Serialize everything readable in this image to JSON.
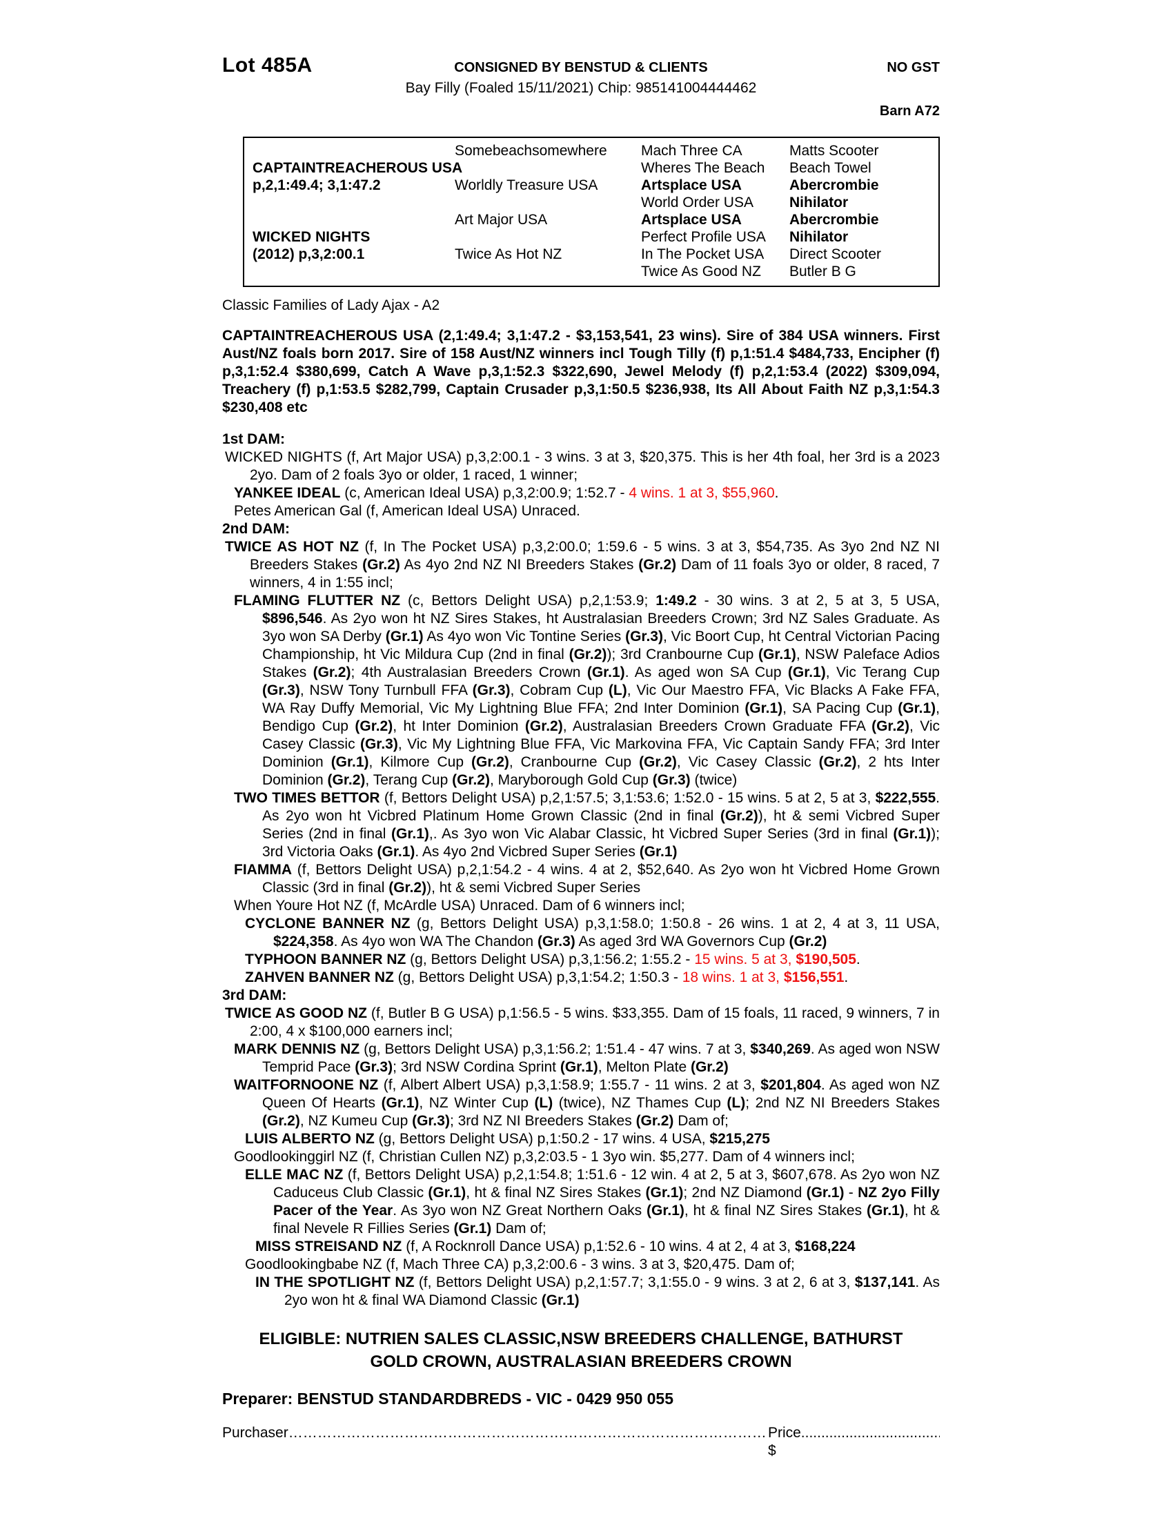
{
  "header": {
    "lot": "Lot 485A",
    "consignor": "CONSIGNED BY BENSTUD & CLIENTS",
    "description": "Bay Filly (Foaled 15/11/2021) Chip: 985141004444462",
    "gst": "NO GST",
    "barn": "Barn A72"
  },
  "pedigree_table": {
    "rows": [
      [
        {
          "t": ""
        },
        {
          "t": "Somebeachsomewhere"
        },
        {
          "t": "Mach Three CA"
        },
        {
          "t": "Matts Scooter"
        }
      ],
      [
        {
          "t": "CAPTAINTREACHEROUS USA",
          "b": true
        },
        {
          "t": ""
        },
        {
          "t": "Wheres The Beach"
        },
        {
          "t": "Beach Towel"
        }
      ],
      [
        {
          "t": "p,2,1:49.4; 3,1:47.2",
          "b": true
        },
        {
          "t": "Worldly Treasure USA"
        },
        {
          "t": "Artsplace USA",
          "b": true
        },
        {
          "t": "Abercrombie",
          "b": true
        }
      ],
      [
        {
          "t": ""
        },
        {
          "t": ""
        },
        {
          "t": "World Order USA"
        },
        {
          "t": "Nihilator",
          "b": true
        }
      ],
      [
        {
          "t": ""
        },
        {
          "t": "Art Major USA"
        },
        {
          "t": "Artsplace USA",
          "b": true
        },
        {
          "t": "Abercrombie",
          "b": true
        }
      ],
      [
        {
          "t": "WICKED NIGHTS",
          "b": true
        },
        {
          "t": ""
        },
        {
          "t": "Perfect Profile USA"
        },
        {
          "t": "Nihilator",
          "b": true
        }
      ],
      [
        {
          "t": "(2012) p,3,2:00.1",
          "b": true
        },
        {
          "t": "Twice As Hot NZ"
        },
        {
          "t": "In The Pocket USA"
        },
        {
          "t": "Direct Scooter"
        }
      ],
      [
        {
          "t": ""
        },
        {
          "t": ""
        },
        {
          "t": "Twice As Good NZ"
        },
        {
          "t": "Butler B G"
        }
      ]
    ]
  },
  "family_line": "Classic Families of Lady Ajax - A2",
  "sire_paragraph": "CAPTAINTREACHEROUS USA (2,1:49.4; 3,1:47.2 - $3,153,541, 23 wins). Sire of 384 USA winners. First Aust/NZ foals born 2017. Sire of 158 Aust/NZ winners incl Tough Tilly (f) p,1:51.4 $484,733, Encipher (f) p,3,1:52.4 $380,699, Catch A Wave p,3,1:52.3 $322,690, Jewel Melody (f) p,2,1:53.4 (2022) $309,094, Treachery (f) p,1:53.5 $282,799, Captain Crusader p,3,1:50.5 $236,938, Its All About Faith NZ p,3,1:54.3 $230,408 etc",
  "sections": [
    {
      "heading": "1st DAM:",
      "paragraphs": [
        {
          "level": 1,
          "runs": [
            {
              "t": "WICKED NIGHTS (f, Art Major USA) p,3,2:00.1 - 3 wins. 3 at 3, $20,375. This is her 4th foal, her 3rd is a 2023 2yo. Dam of 2 foals 3yo or older, 1 raced, 1 winner;"
            }
          ]
        },
        {
          "level": 2,
          "runs": [
            {
              "t": "YANKEE IDEAL",
              "b": true
            },
            {
              "t": " (c, American Ideal USA) p,3,2:00.9; 1:52.7 - "
            },
            {
              "t": "4 wins. 1 at 3, $55,960",
              "r": true
            },
            {
              "t": "."
            }
          ]
        },
        {
          "level": 2,
          "runs": [
            {
              "t": "Petes American Gal (f, American Ideal USA) Unraced."
            }
          ]
        }
      ]
    },
    {
      "heading": "2nd DAM:",
      "paragraphs": [
        {
          "level": 1,
          "runs": [
            {
              "t": "TWICE AS HOT NZ",
              "b": true
            },
            {
              "t": " (f, In The Pocket USA) p,3,2:00.0; 1:59.6 - 5 wins. 3 at 3, $54,735. As 3yo 2nd NZ NI Breeders Stakes "
            },
            {
              "t": "(Gr.2)",
              "b": true
            },
            {
              "t": " As 4yo 2nd NZ NI Breeders Stakes "
            },
            {
              "t": "(Gr.2)",
              "b": true
            },
            {
              "t": " Dam of 11 foals 3yo or older, 8 raced, 7 winners, 4 in 1:55 incl;"
            }
          ]
        },
        {
          "level": 2,
          "runs": [
            {
              "t": "FLAMING FLUTTER NZ",
              "b": true
            },
            {
              "t": " (c, Bettors Delight USA) p,2,1:53.9; "
            },
            {
              "t": "1:49.2",
              "b": true
            },
            {
              "t": " - 30 wins. 3 at 2, 5 at 3, 5 USA, "
            },
            {
              "t": "$896,546",
              "b": true
            },
            {
              "t": ". As 2yo won ht NZ Sires Stakes, ht Australasian Breeders Crown; 3rd NZ Sales Graduate. As 3yo won SA Derby "
            },
            {
              "t": "(Gr.1)",
              "b": true
            },
            {
              "t": " As 4yo won Vic Tontine Series "
            },
            {
              "t": "(Gr.3)",
              "b": true
            },
            {
              "t": ", Vic Boort Cup, ht Central Victorian Pacing Championship, ht Vic Mildura Cup (2nd in final "
            },
            {
              "t": "(Gr.2)",
              "b": true
            },
            {
              "t": "); 3rd Cranbourne Cup "
            },
            {
              "t": "(Gr.1)",
              "b": true
            },
            {
              "t": ", NSW Paleface Adios Stakes "
            },
            {
              "t": "(Gr.2)",
              "b": true
            },
            {
              "t": "; 4th Australasian Breeders Crown "
            },
            {
              "t": "(Gr.1)",
              "b": true
            },
            {
              "t": ". As aged won SA Cup "
            },
            {
              "t": "(Gr.1)",
              "b": true
            },
            {
              "t": ", Vic Terang Cup "
            },
            {
              "t": "(Gr.3)",
              "b": true
            },
            {
              "t": ", NSW Tony Turnbull FFA "
            },
            {
              "t": "(Gr.3)",
              "b": true
            },
            {
              "t": ", Cobram Cup "
            },
            {
              "t": "(L)",
              "b": true
            },
            {
              "t": ", Vic Our Maestro FFA, Vic Blacks A Fake FFA, WA Ray Duffy Memorial, Vic My Lightning Blue FFA; 2nd Inter Dominion "
            },
            {
              "t": "(Gr.1)",
              "b": true
            },
            {
              "t": ", SA Pacing Cup "
            },
            {
              "t": "(Gr.1)",
              "b": true
            },
            {
              "t": ", Bendigo Cup "
            },
            {
              "t": "(Gr.2)",
              "b": true
            },
            {
              "t": ", ht Inter Dominion "
            },
            {
              "t": "(Gr.2)",
              "b": true
            },
            {
              "t": ", Australasian Breeders Crown Graduate FFA "
            },
            {
              "t": "(Gr.2)",
              "b": true
            },
            {
              "t": ", Vic Casey Classic "
            },
            {
              "t": "(Gr.3)",
              "b": true
            },
            {
              "t": ", Vic My Lightning Blue FFA, Vic Markovina FFA, Vic Captain Sandy FFA; 3rd Inter Dominion "
            },
            {
              "t": "(Gr.1)",
              "b": true
            },
            {
              "t": ", Kilmore Cup "
            },
            {
              "t": "(Gr.2)",
              "b": true
            },
            {
              "t": ", Cranbourne Cup "
            },
            {
              "t": "(Gr.2)",
              "b": true
            },
            {
              "t": ", Vic Casey Classic "
            },
            {
              "t": "(Gr.2)",
              "b": true
            },
            {
              "t": ", 2 hts Inter Dominion "
            },
            {
              "t": "(Gr.2)",
              "b": true
            },
            {
              "t": ", Terang Cup "
            },
            {
              "t": "(Gr.2)",
              "b": true
            },
            {
              "t": ", Maryborough Gold Cup "
            },
            {
              "t": "(Gr.3)",
              "b": true
            },
            {
              "t": " (twice)"
            }
          ]
        },
        {
          "level": 2,
          "runs": [
            {
              "t": "TWO TIMES BETTOR",
              "b": true
            },
            {
              "t": " (f, Bettors Delight USA) p,2,1:57.5; 3,1:53.6; 1:52.0 - 15 wins. 5 at 2, 5 at 3, "
            },
            {
              "t": "$222,555",
              "b": true
            },
            {
              "t": ". As 2yo won ht Vicbred Platinum Home Grown Classic (2nd in final "
            },
            {
              "t": "(Gr.2)",
              "b": true
            },
            {
              "t": "), ht & semi Vicbred Super Series (2nd in final "
            },
            {
              "t": "(Gr.1)",
              "b": true
            },
            {
              "t": ",. As 3yo won Vic Alabar Classic, ht Vicbred Super Series (3rd in final "
            },
            {
              "t": "(Gr.1)",
              "b": true
            },
            {
              "t": "); 3rd Victoria Oaks "
            },
            {
              "t": "(Gr.1)",
              "b": true
            },
            {
              "t": ". As 4yo 2nd Vicbred Super Series "
            },
            {
              "t": "(Gr.1)",
              "b": true
            }
          ]
        },
        {
          "level": 2,
          "runs": [
            {
              "t": "FIAMMA",
              "b": true
            },
            {
              "t": " (f, Bettors Delight USA) p,2,1:54.2 - 4 wins. 4 at 2, $52,640. As 2yo won ht Vicbred Home Grown Classic (3rd in final "
            },
            {
              "t": "(Gr.2)",
              "b": true
            },
            {
              "t": "), ht & semi Vicbred Super Series"
            }
          ]
        },
        {
          "level": 2,
          "runs": [
            {
              "t": "When Youre Hot NZ (f, McArdle USA) Unraced. Dam of 6 winners incl;"
            }
          ]
        },
        {
          "level": 3,
          "runs": [
            {
              "t": "CYCLONE BANNER NZ",
              "b": true
            },
            {
              "t": " (g, Bettors Delight USA) p,3,1:58.0; 1:50.8 - 26 wins. 1 at 2, 4 at 3, 11 USA, "
            },
            {
              "t": "$224,358",
              "b": true
            },
            {
              "t": ". As 4yo won WA The Chandon "
            },
            {
              "t": "(Gr.3)",
              "b": true
            },
            {
              "t": " As aged 3rd WA Governors Cup "
            },
            {
              "t": "(Gr.2)",
              "b": true
            }
          ]
        },
        {
          "level": 3,
          "runs": [
            {
              "t": "TYPHOON BANNER NZ",
              "b": true
            },
            {
              "t": " (g, Bettors Delight USA) p,3,1:56.2; 1:55.2 - "
            },
            {
              "t": "15 wins. 5 at 3, ",
              "r": true
            },
            {
              "t": "$190,505",
              "b": true,
              "r": true
            },
            {
              "t": "."
            }
          ]
        },
        {
          "level": 3,
          "runs": [
            {
              "t": "ZAHVEN BANNER NZ",
              "b": true
            },
            {
              "t": " (g, Bettors Delight USA) p,3,1:54.2; 1:50.3 - "
            },
            {
              "t": "18 wins. 1 at 3, ",
              "r": true
            },
            {
              "t": "$156,551",
              "b": true,
              "r": true
            },
            {
              "t": "."
            }
          ]
        }
      ]
    },
    {
      "heading": "3rd DAM:",
      "paragraphs": [
        {
          "level": 1,
          "runs": [
            {
              "t": "TWICE AS GOOD NZ",
              "b": true
            },
            {
              "t": " (f, Butler B G USA) p,1:56.5 - 5 wins. $33,355. Dam of 15 foals, 11 raced, 9 winners, 7 in 2:00, 4 x $100,000 earners incl;"
            }
          ]
        },
        {
          "level": 2,
          "runs": [
            {
              "t": "MARK DENNIS NZ",
              "b": true
            },
            {
              "t": " (g, Bettors Delight USA) p,3,1:56.2; 1:51.4 - 47 wins. 7 at 3, "
            },
            {
              "t": "$340,269",
              "b": true
            },
            {
              "t": ". As aged won NSW Temprid Pace "
            },
            {
              "t": "(Gr.3)",
              "b": true
            },
            {
              "t": "; 3rd NSW Cordina Sprint "
            },
            {
              "t": "(Gr.1)",
              "b": true
            },
            {
              "t": ", Melton Plate "
            },
            {
              "t": "(Gr.2)",
              "b": true
            }
          ]
        },
        {
          "level": 2,
          "runs": [
            {
              "t": "WAITFORNOONE NZ",
              "b": true
            },
            {
              "t": " (f, Albert Albert USA) p,3,1:58.9; 1:55.7 - 11 wins. 2 at 3, "
            },
            {
              "t": "$201,804",
              "b": true
            },
            {
              "t": ". As aged won NZ Queen Of Hearts "
            },
            {
              "t": "(Gr.1)",
              "b": true
            },
            {
              "t": ", NZ Winter Cup "
            },
            {
              "t": "(L)",
              "b": true
            },
            {
              "t": " (twice), NZ Thames Cup "
            },
            {
              "t": "(L)",
              "b": true
            },
            {
              "t": "; 2nd NZ NI Breeders Stakes "
            },
            {
              "t": "(Gr.2)",
              "b": true
            },
            {
              "t": ", NZ Kumeu Cup "
            },
            {
              "t": "(Gr.3)",
              "b": true
            },
            {
              "t": "; 3rd NZ NI Breeders Stakes "
            },
            {
              "t": "(Gr.2)",
              "b": true
            },
            {
              "t": " Dam of;"
            }
          ]
        },
        {
          "level": 3,
          "runs": [
            {
              "t": "LUIS ALBERTO NZ",
              "b": true
            },
            {
              "t": " (g, Bettors Delight USA) p,1:50.2 - 17 wins. 4 USA, "
            },
            {
              "t": "$215,275",
              "b": true
            }
          ]
        },
        {
          "level": 2,
          "runs": [
            {
              "t": "Goodlookinggirl NZ (f, Christian Cullen NZ) p,3,2:03.5 - 1 3yo win. $5,277. Dam of 4 winners incl;"
            }
          ]
        },
        {
          "level": 3,
          "runs": [
            {
              "t": "ELLE MAC NZ",
              "b": true
            },
            {
              "t": " (f, Bettors Delight USA) p,2,1:54.8; 1:51.6 - 12 win. 4 at 2, 5 at 3, $607,678. As 2yo won NZ Caduceus Club Classic "
            },
            {
              "t": "(Gr.1)",
              "b": true
            },
            {
              "t": ", ht & final NZ Sires Stakes "
            },
            {
              "t": "(Gr.1)",
              "b": true
            },
            {
              "t": "; 2nd NZ Diamond "
            },
            {
              "t": "(Gr.1)",
              "b": true
            },
            {
              "t": " - "
            },
            {
              "t": "NZ 2yo Filly Pacer of the Year",
              "b": true
            },
            {
              "t": ". As 3yo won NZ Great Northern Oaks "
            },
            {
              "t": "(Gr.1)",
              "b": true
            },
            {
              "t": ", ht & final NZ Sires Stakes "
            },
            {
              "t": "(Gr.1)",
              "b": true
            },
            {
              "t": ", ht & final Nevele R Fillies Series "
            },
            {
              "t": "(Gr.1)",
              "b": true
            },
            {
              "t": " Dam of;"
            }
          ]
        },
        {
          "level": 4,
          "runs": [
            {
              "t": "MISS STREISAND NZ",
              "b": true
            },
            {
              "t": " (f, A Rocknroll Dance USA) p,1:52.6 - 10 wins. 4 at 2, 4 at 3, "
            },
            {
              "t": "$168,224",
              "b": true
            }
          ]
        },
        {
          "level": 3,
          "runs": [
            {
              "t": "Goodlookingbabe NZ (f, Mach Three CA) p,3,2:00.6 - 3 wins. 3 at 3, $20,475. Dam of;"
            }
          ]
        },
        {
          "level": 4,
          "runs": [
            {
              "t": "IN THE SPOTLIGHT NZ",
              "b": true
            },
            {
              "t": " (f, Bettors Delight USA) p,2,1:57.7; 3,1:55.0 - 9 wins. 3 at 2, 6 at 3, "
            },
            {
              "t": "$137,141",
              "b": true
            },
            {
              "t": ". As 2yo won ht & final WA Diamond Classic "
            },
            {
              "t": "(Gr.1)",
              "b": true
            }
          ]
        }
      ]
    }
  ],
  "eligible": {
    "line1": "ELIGIBLE: NUTRIEN SALES CLASSIC,NSW BREEDERS CHALLENGE, BATHURST",
    "line2": "GOLD CROWN, AUSTRALASIAN BREEDERS CROWN"
  },
  "preparer": "Preparer: BENSTUD STANDARDBREDS - VIC - 0429 950 055",
  "purchaser": {
    "label": "Purchaser",
    "dots": "………………………………………………………………………………………………………………………………",
    "price_label": "Price $",
    "price_dots": ".................................................."
  },
  "colors": {
    "text_black": "#000000",
    "highlight_red": "#ee1111"
  }
}
